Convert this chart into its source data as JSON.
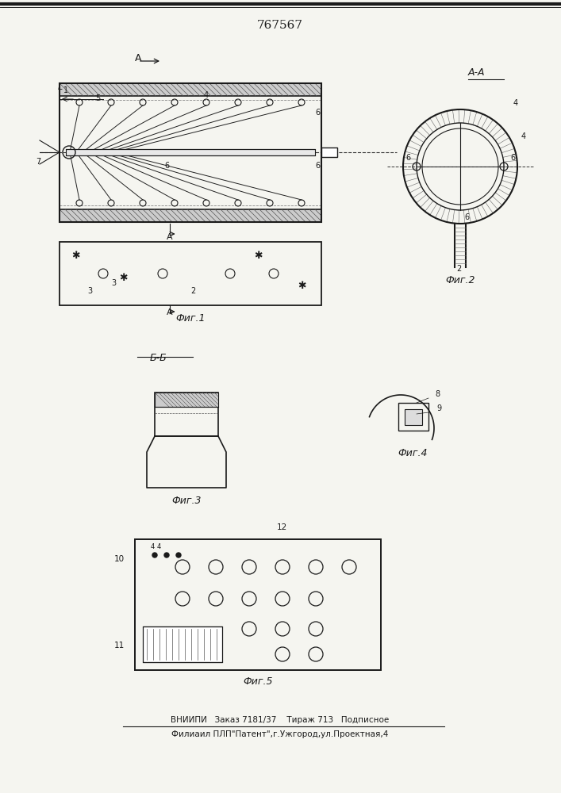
{
  "patent_number": "767567",
  "background_color": "#f5f5f0",
  "line_color": "#1a1a1a",
  "footer_line1": "ВНИИПИ   Заказ 7181/37    Тираж 713   Подписное",
  "footer_line2": "Филиаил ПЛП\"Патент\",г.Ужгород,ул.Проектная,4",
  "fig1_label": "Фиг.1",
  "fig2_label": "Фиг.2",
  "fig3_label": "Фиг.3",
  "fig4_label": "Фиг.4",
  "fig5_label": "Фиг.5",
  "section_aa": "А-А",
  "section_bb": "Б-Б"
}
